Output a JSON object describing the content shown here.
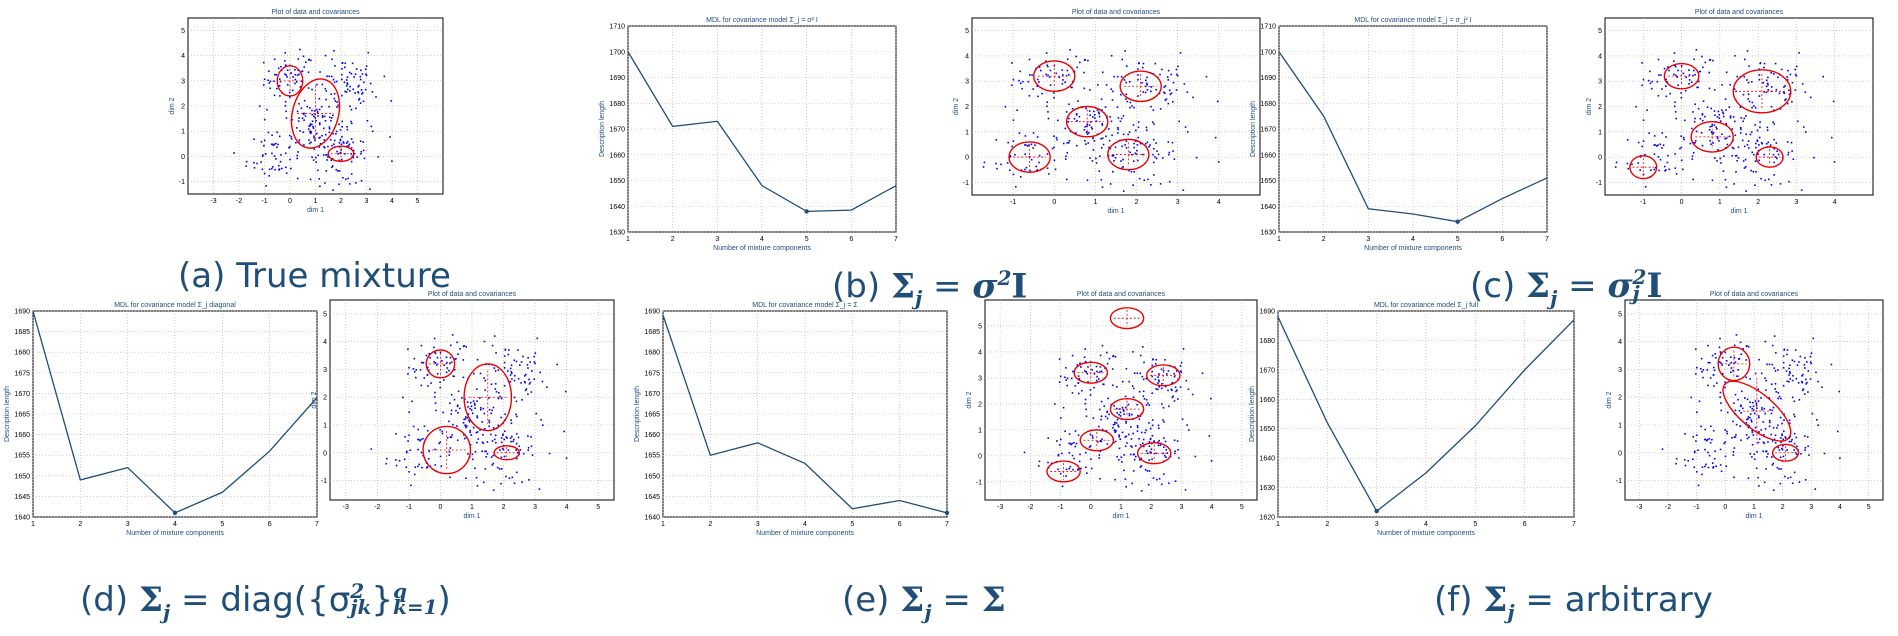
{
  "figure": {
    "mdl_ylabel": "Description length",
    "mdl_xlabel": "Number of mixture components",
    "scatter_title": "Plot of data and covariances",
    "scatter_xlabel": "dim 1",
    "scatter_ylabel": "dim 2",
    "colors": {
      "line": "#1f4e79",
      "points": "#0000ee",
      "ellipse": "#ee0000",
      "grid": "#b0b0b0",
      "caption": "#1f4e79"
    }
  },
  "captions": {
    "a": {
      "label": "(a)",
      "text": "True mixture"
    },
    "b": {
      "label": "(b)",
      "sigma": "Σ",
      "sub": "j",
      "eq": "=",
      "rhs": "σ",
      "rhs_sup": "2",
      "rhs_mat": "I"
    },
    "c": {
      "label": "(c)",
      "sigma": "Σ",
      "sub": "j",
      "eq": "=",
      "rhs": "σ",
      "rhs_sup": "2",
      "rhs_sub": "j",
      "rhs_mat": "I"
    },
    "d": {
      "label": "(d)",
      "sigma": "Σ",
      "sub": "j",
      "eq": "=",
      "fn": "diag({σ",
      "fn_sup": "2",
      "fn_sub": "jk",
      "close": "}",
      "close_sup": "q",
      "close_sub": "k=1",
      "tail": ")"
    },
    "e": {
      "label": "(e)",
      "sigma": "Σ",
      "sub": "j",
      "eq": "=",
      "rhs": "Σ"
    },
    "f": {
      "label": "(f)",
      "sigma": "Σ",
      "sub": "j",
      "eq": "=",
      "rhs": "arbitrary"
    }
  },
  "chart_data": [
    {
      "id": "a_scatter",
      "type": "scatter",
      "title": "Plot of data and covariances",
      "xlabel": "dim 1",
      "ylabel": "dim 2",
      "xlim": [
        -4,
        6
      ],
      "ylim": [
        -1.5,
        5.5
      ],
      "xticks": [
        -3,
        -2,
        -1,
        0,
        1,
        2,
        3,
        4,
        5
      ],
      "yticks": [
        -1,
        0,
        1,
        2,
        3,
        4,
        5
      ],
      "ellipses": [
        {
          "cx": 0,
          "cy": 3,
          "rx": 0.5,
          "ry": 0.6,
          "angle": 0
        },
        {
          "cx": 1,
          "cy": 1.7,
          "rx": 0.9,
          "ry": 1.4,
          "angle": -15
        },
        {
          "cx": 2,
          "cy": 0.1,
          "rx": 0.5,
          "ry": 0.3,
          "angle": 0
        }
      ]
    },
    {
      "id": "b_mdl",
      "type": "line",
      "title": "MDL for covariance model Σ_j = σ² I",
      "xlabel": "Number of mixture components",
      "ylabel": "Description length",
      "xlim": [
        1,
        7
      ],
      "ylim": [
        1630,
        1710
      ],
      "xticks": [
        1,
        2,
        3,
        4,
        5,
        6,
        7
      ],
      "yticks": [
        1630,
        1640,
        1650,
        1660,
        1670,
        1680,
        1690,
        1700,
        1710
      ],
      "x": [
        1,
        2,
        3,
        4,
        5,
        6,
        7
      ],
      "y": [
        1700,
        1671,
        1673,
        1648,
        1638,
        1638.5,
        1648
      ],
      "marker_at": 5
    },
    {
      "id": "b_scatter",
      "type": "scatter",
      "title": "Plot of data and covariances",
      "xlabel": "dim 1",
      "ylabel": "dim 2",
      "xlim": [
        -2,
        5
      ],
      "ylim": [
        -1.5,
        5.5
      ],
      "xticks": [
        -1,
        0,
        1,
        2,
        3,
        4
      ],
      "yticks": [
        -1,
        0,
        1,
        2,
        3,
        4,
        5
      ],
      "ellipses": [
        {
          "cx": 0,
          "cy": 3.2,
          "rx": 0.5,
          "ry": 0.6,
          "angle": 0
        },
        {
          "cx": 2.1,
          "cy": 2.8,
          "rx": 0.5,
          "ry": 0.6,
          "angle": 0
        },
        {
          "cx": 0.8,
          "cy": 1.4,
          "rx": 0.5,
          "ry": 0.6,
          "angle": 0
        },
        {
          "cx": -0.6,
          "cy": 0,
          "rx": 0.5,
          "ry": 0.6,
          "angle": 0
        },
        {
          "cx": 1.8,
          "cy": 0.1,
          "rx": 0.5,
          "ry": 0.6,
          "angle": 0
        }
      ]
    },
    {
      "id": "c_mdl",
      "type": "line",
      "title": "MDL for covariance model Σ_j = σ_j² I",
      "xlabel": "Number of mixture components",
      "ylabel": "Description length",
      "xlim": [
        1,
        7
      ],
      "ylim": [
        1630,
        1710
      ],
      "xticks": [
        1,
        2,
        3,
        4,
        5,
        6,
        7
      ],
      "yticks": [
        1630,
        1640,
        1650,
        1660,
        1670,
        1680,
        1690,
        1700,
        1710
      ],
      "x": [
        1,
        2,
        3,
        4,
        5,
        6,
        7
      ],
      "y": [
        1700,
        1675,
        1639,
        1637,
        1634,
        1643,
        1651
      ],
      "marker_at": 5
    },
    {
      "id": "c_scatter",
      "type": "scatter",
      "title": "Plot of data and covariances",
      "xlabel": "dim 1",
      "ylabel": "dim 2",
      "xlim": [
        -2,
        5
      ],
      "ylim": [
        -1.5,
        5.5
      ],
      "xticks": [
        -1,
        0,
        1,
        2,
        3,
        4
      ],
      "yticks": [
        -1,
        0,
        1,
        2,
        3,
        4,
        5
      ],
      "ellipses": [
        {
          "cx": 0,
          "cy": 3.2,
          "rx": 0.45,
          "ry": 0.5,
          "angle": 0
        },
        {
          "cx": 2.1,
          "cy": 2.6,
          "rx": 0.75,
          "ry": 0.85,
          "angle": 0
        },
        {
          "cx": 0.8,
          "cy": 0.8,
          "rx": 0.55,
          "ry": 0.6,
          "angle": 0
        },
        {
          "cx": -1,
          "cy": -0.4,
          "rx": 0.35,
          "ry": 0.45,
          "angle": 0
        },
        {
          "cx": 2.3,
          "cy": 0,
          "rx": 0.35,
          "ry": 0.4,
          "angle": 0
        }
      ]
    },
    {
      "id": "d_mdl",
      "type": "line",
      "title": "MDL for covariance model Σ_j diagonal",
      "xlabel": "Number of mixture components",
      "ylabel": "Description length",
      "xlim": [
        1,
        7
      ],
      "ylim": [
        1640,
        1690
      ],
      "xticks": [
        1,
        2,
        3,
        4,
        5,
        6,
        7
      ],
      "yticks": [
        1640,
        1645,
        1650,
        1655,
        1660,
        1665,
        1670,
        1675,
        1680,
        1685,
        1690
      ],
      "x": [
        1,
        2,
        3,
        4,
        5,
        6,
        7
      ],
      "y": [
        1690,
        1649,
        1652,
        1641,
        1646,
        1656,
        1669
      ],
      "marker_at": 4
    },
    {
      "id": "d_scatter",
      "type": "scatter",
      "title": "Plot of data and covariances",
      "xlabel": "dim 1",
      "ylabel": "dim 2",
      "xlim": [
        -3.5,
        5.5
      ],
      "ylim": [
        -1.7,
        5.5
      ],
      "xticks": [
        -3,
        -2,
        -1,
        0,
        1,
        2,
        3,
        4,
        5
      ],
      "yticks": [
        -1,
        0,
        1,
        2,
        3,
        4,
        5
      ],
      "ellipses": [
        {
          "cx": 0,
          "cy": 3.2,
          "rx": 0.45,
          "ry": 0.5,
          "angle": 0
        },
        {
          "cx": 1.5,
          "cy": 2,
          "rx": 0.75,
          "ry": 1.2,
          "angle": 0
        },
        {
          "cx": 0.2,
          "cy": 0.1,
          "rx": 0.75,
          "ry": 0.85,
          "angle": 0
        },
        {
          "cx": 2.1,
          "cy": 0,
          "rx": 0.4,
          "ry": 0.25,
          "angle": 0
        }
      ]
    },
    {
      "id": "e_mdl",
      "type": "line",
      "title": "MDL for covariance model Σ_j = Σ",
      "xlabel": "Number of mixture components",
      "ylabel": "Description length",
      "xlim": [
        1,
        7
      ],
      "ylim": [
        1640,
        1690
      ],
      "xticks": [
        1,
        2,
        3,
        4,
        5,
        6,
        7
      ],
      "yticks": [
        1640,
        1645,
        1650,
        1655,
        1660,
        1665,
        1670,
        1675,
        1680,
        1685,
        1690
      ],
      "x": [
        1,
        2,
        3,
        4,
        5,
        6,
        7
      ],
      "y": [
        1689,
        1655,
        1658,
        1653,
        1642,
        1644,
        1641
      ],
      "marker_at": 7
    },
    {
      "id": "e_scatter",
      "type": "scatter",
      "title": "Plot of data and covariances",
      "xlabel": "dim 1",
      "ylabel": "dim 2",
      "xlim": [
        -3.5,
        5.5
      ],
      "ylim": [
        -1.7,
        6
      ],
      "xticks": [
        -3,
        -2,
        -1,
        0,
        1,
        2,
        3,
        4,
        5
      ],
      "yticks": [
        -1,
        0,
        1,
        2,
        3,
        4,
        5
      ],
      "ellipses": [
        {
          "cx": 1.2,
          "cy": 5.3,
          "rx": 0.55,
          "ry": 0.4,
          "angle": 0
        },
        {
          "cx": 0,
          "cy": 3.2,
          "rx": 0.55,
          "ry": 0.4,
          "angle": 0
        },
        {
          "cx": 2.4,
          "cy": 3.1,
          "rx": 0.55,
          "ry": 0.4,
          "angle": 0
        },
        {
          "cx": 1.2,
          "cy": 1.8,
          "rx": 0.55,
          "ry": 0.4,
          "angle": 0
        },
        {
          "cx": 0.2,
          "cy": 0.6,
          "rx": 0.55,
          "ry": 0.4,
          "angle": 0
        },
        {
          "cx": 2.1,
          "cy": 0.1,
          "rx": 0.55,
          "ry": 0.4,
          "angle": 0
        },
        {
          "cx": -0.9,
          "cy": -0.6,
          "rx": 0.55,
          "ry": 0.4,
          "angle": 0
        }
      ]
    },
    {
      "id": "f_mdl",
      "type": "line",
      "title": "MDL for covariance model Σ_j full",
      "xlabel": "Number of mixture components",
      "ylabel": "Description length",
      "xlim": [
        1,
        7
      ],
      "ylim": [
        1620,
        1690
      ],
      "xticks": [
        1,
        2,
        3,
        4,
        5,
        6,
        7
      ],
      "yticks": [
        1620,
        1630,
        1640,
        1650,
        1660,
        1670,
        1680,
        1690
      ],
      "x": [
        1,
        2,
        3,
        4,
        5,
        6,
        7
      ],
      "y": [
        1688,
        1652,
        1622,
        1635,
        1651,
        1670,
        1687
      ],
      "marker_at": 3
    },
    {
      "id": "f_scatter",
      "type": "scatter",
      "title": "Plot of data and covariances",
      "xlabel": "dim 1",
      "ylabel": "dim 2",
      "xlim": [
        -3.5,
        5.5
      ],
      "ylim": [
        -1.7,
        5.5
      ],
      "xticks": [
        -3,
        -2,
        -1,
        0,
        1,
        2,
        3,
        4,
        5
      ],
      "yticks": [
        -1,
        0,
        1,
        2,
        3,
        4,
        5
      ],
      "ellipses": [
        {
          "cx": 0.3,
          "cy": 3.2,
          "rx": 0.55,
          "ry": 0.6,
          "angle": 0
        },
        {
          "cx": 1.1,
          "cy": 1.5,
          "rx": 0.6,
          "ry": 1.5,
          "angle": 50
        },
        {
          "cx": 2.1,
          "cy": 0,
          "rx": 0.45,
          "ry": 0.3,
          "angle": 0
        }
      ]
    }
  ]
}
